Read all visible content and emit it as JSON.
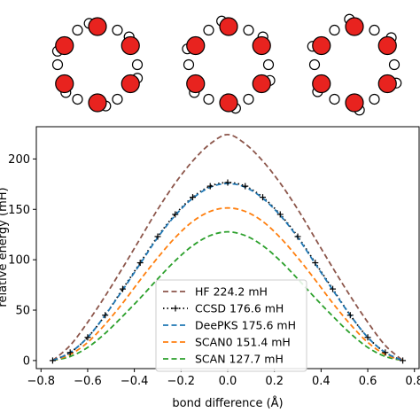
{
  "molecules": {
    "count": 3,
    "atom_colors": {
      "oxygen": "#e8231f",
      "hydrogen": "#ffffff",
      "outline": "#000000"
    }
  },
  "chart_data": {
    "type": "line",
    "title": "",
    "xlabel": "bond difference (Å)",
    "ylabel": "relative energy (mH)",
    "xlim": [
      -0.82,
      0.82
    ],
    "ylim": [
      -8,
      232
    ],
    "xticks": [
      -0.8,
      -0.6,
      -0.4,
      -0.2,
      0.0,
      0.2,
      0.4,
      0.6,
      0.8
    ],
    "xtick_labels": [
      "−0.8",
      "−0.6",
      "−0.4",
      "−0.2",
      "0.0",
      "0.2",
      "0.4",
      "0.6",
      "0.8"
    ],
    "yticks": [
      0,
      50,
      100,
      150,
      200
    ],
    "ytick_labels": [
      "0",
      "50",
      "100",
      "150",
      "200"
    ],
    "grid": false,
    "legend_position": "bottom-center",
    "series": [
      {
        "name": "HF",
        "value_label": "224.2 mH",
        "color": "#8c564b",
        "style": "dashed",
        "marker": "none",
        "x": [
          -0.75,
          -0.675,
          -0.6,
          -0.525,
          -0.45,
          -0.375,
          -0.3,
          -0.225,
          -0.15,
          -0.075,
          0.0,
          0.075,
          0.15,
          0.225,
          0.3,
          0.375,
          0.45,
          0.525,
          0.6,
          0.675,
          0.75
        ],
        "y": [
          0,
          15,
          38,
          64,
          92,
          121,
          150,
          176,
          198,
          215,
          224.2,
          215,
          198,
          176,
          150,
          121,
          92,
          64,
          38,
          15,
          0
        ]
      },
      {
        "name": "CCSD",
        "value_label": "176.6 mH",
        "color": "#000000",
        "style": "dotted",
        "marker": "plus",
        "x": [
          -0.75,
          -0.675,
          -0.6,
          -0.525,
          -0.45,
          -0.375,
          -0.3,
          -0.225,
          -0.15,
          -0.075,
          0.0,
          0.075,
          0.15,
          0.225,
          0.3,
          0.375,
          0.45,
          0.525,
          0.6,
          0.675,
          0.75
        ],
        "y": [
          0,
          8,
          23,
          45,
          71,
          97,
          123,
          145,
          162,
          173,
          176.6,
          173,
          162,
          145,
          123,
          97,
          71,
          45,
          23,
          8,
          0
        ]
      },
      {
        "name": "DeePKS",
        "value_label": "175.6 mH",
        "color": "#1f77b4",
        "style": "dashed",
        "marker": "none",
        "x": [
          -0.75,
          -0.675,
          -0.6,
          -0.525,
          -0.45,
          -0.375,
          -0.3,
          -0.225,
          -0.15,
          -0.075,
          0.0,
          0.075,
          0.15,
          0.225,
          0.3,
          0.375,
          0.45,
          0.525,
          0.6,
          0.675,
          0.75
        ],
        "y": [
          0,
          8,
          23,
          45,
          70,
          96,
          122,
          144,
          161,
          172,
          175.6,
          172,
          161,
          144,
          122,
          96,
          70,
          45,
          23,
          8,
          0
        ]
      },
      {
        "name": "SCAN0",
        "value_label": "151.4 mH",
        "color": "#ff7f0e",
        "style": "dashed",
        "marker": "none",
        "x": [
          -0.75,
          -0.675,
          -0.6,
          -0.525,
          -0.45,
          -0.375,
          -0.3,
          -0.225,
          -0.15,
          -0.075,
          0.0,
          0.075,
          0.15,
          0.225,
          0.3,
          0.375,
          0.45,
          0.525,
          0.6,
          0.675,
          0.75
        ],
        "y": [
          0,
          6,
          18,
          36,
          57,
          80,
          102,
          122,
          138,
          148,
          151.4,
          148,
          138,
          122,
          102,
          80,
          57,
          36,
          18,
          6,
          0
        ]
      },
      {
        "name": "SCAN",
        "value_label": "127.7 mH",
        "color": "#2ca02c",
        "style": "dashed",
        "marker": "none",
        "x": [
          -0.75,
          -0.675,
          -0.6,
          -0.525,
          -0.45,
          -0.375,
          -0.3,
          -0.225,
          -0.15,
          -0.075,
          0.0,
          0.075,
          0.15,
          0.225,
          0.3,
          0.375,
          0.45,
          0.525,
          0.6,
          0.675,
          0.75
        ],
        "y": [
          0,
          4,
          13,
          27,
          44,
          62,
          81,
          99,
          114,
          124,
          127.7,
          124,
          114,
          99,
          81,
          62,
          44,
          27,
          13,
          4,
          0
        ]
      }
    ]
  }
}
